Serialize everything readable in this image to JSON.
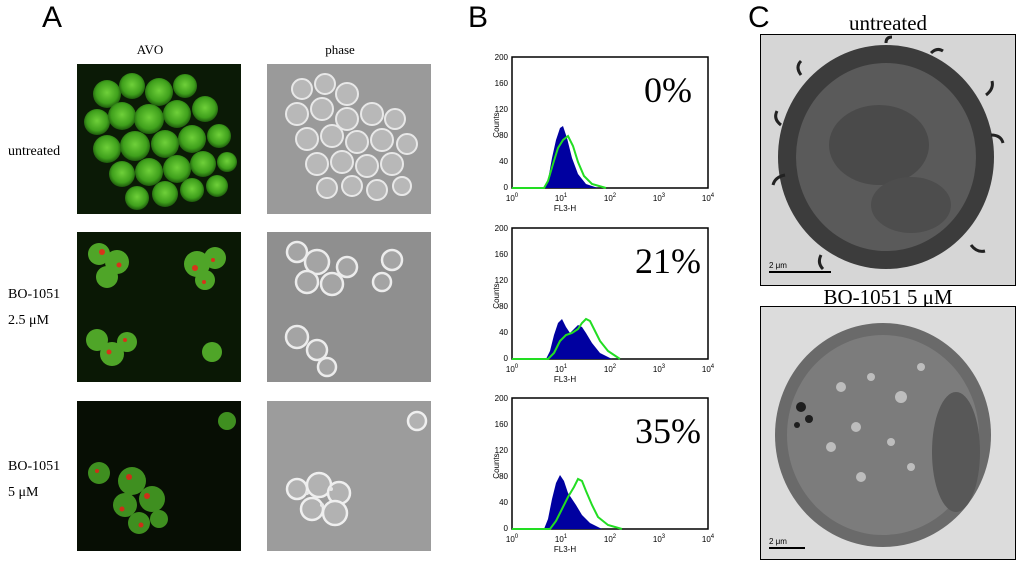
{
  "panel_a": {
    "letter": "A",
    "columns": [
      "AVO",
      "phase"
    ],
    "rows": [
      {
        "label_lines": [
          "untreated"
        ]
      },
      {
        "label_lines": [
          "BO-1051",
          "2.5 μM"
        ]
      },
      {
        "label_lines": [
          "BO-1051",
          "5 μM"
        ]
      }
    ]
  },
  "panel_b": {
    "letter": "B",
    "x_axis_label": "FL3-H",
    "y_axis_label": "Counts",
    "y_ticks": [
      "0",
      "40",
      "80",
      "120",
      "160",
      "200"
    ],
    "x_ticks": [
      "10",
      "10",
      "10",
      "10",
      "10"
    ],
    "x_tick_exponents": [
      "0",
      "1",
      "2",
      "3",
      "4"
    ],
    "histograms": [
      {
        "percent_label": "0%"
      },
      {
        "percent_label": "21%"
      },
      {
        "percent_label": "35%"
      }
    ],
    "colors": {
      "filled": "#0000a0",
      "outline": "#22dd22"
    }
  },
  "panel_c": {
    "letter": "C",
    "images": [
      {
        "title": "untreated",
        "scale_bar": "2 μm"
      },
      {
        "title": "BO-1051 5 μM",
        "scale_bar": "2 μm"
      }
    ]
  }
}
